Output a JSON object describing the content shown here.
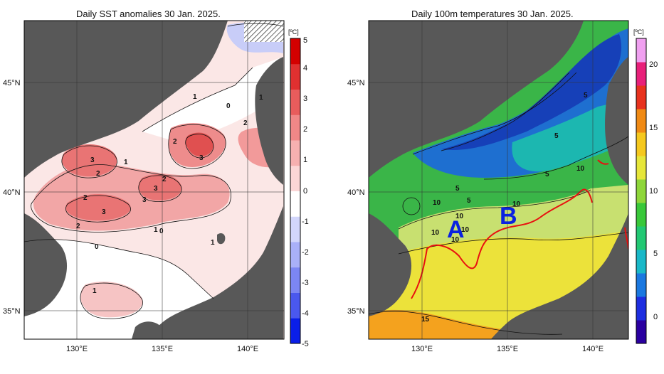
{
  "panels": [
    {
      "id": "sst",
      "title": "Daily SST anomalies 30 Jan. 2025.",
      "lat_labels": [
        "45°N",
        "40°N",
        "35°N"
      ],
      "lon_labels": [
        "130°E",
        "135°E",
        "140°E"
      ],
      "colorbar": {
        "unit": "[ºC]",
        "ticks": [
          "5",
          "4",
          "3",
          "2",
          "1",
          "0",
          "-1",
          "-2",
          "-3",
          "-4",
          "-5"
        ],
        "min": -5,
        "max": 5,
        "colors": [
          "#0a1ee8",
          "#4a58ee",
          "#7c86f3",
          "#a9b0f8",
          "#d2d6fb",
          "#ffffff",
          "#fbd6d6",
          "#f6b0b0",
          "#f08787",
          "#e85c5c",
          "#e03030",
          "#d40000"
        ]
      },
      "contour_labels": [
        "3",
        "2",
        "1",
        "0",
        "2",
        "3",
        "2",
        "3",
        "3",
        "2",
        "3",
        "2",
        "1",
        "1",
        "0",
        "1",
        "2",
        "1",
        "0",
        "1"
      ]
    },
    {
      "id": "t100",
      "title": "Daily 100m temperatures 30 Jan. 2025.",
      "lat_labels": [
        "45°N",
        "40°N",
        "35°N"
      ],
      "lon_labels": [
        "130°E",
        "135°E",
        "140°E"
      ],
      "colorbar": {
        "unit": "[ºC]",
        "ticks": [
          "20",
          "15",
          "10",
          "5",
          "0"
        ],
        "min": -2,
        "max": 22,
        "colors": [
          "#2a00a0",
          "#1e2ee0",
          "#1a78e0",
          "#19b8c8",
          "#22c873",
          "#39c83a",
          "#8ed63a",
          "#e6e63a",
          "#f5c81e",
          "#f08a14",
          "#e8321e",
          "#e8207a",
          "#f0a0f0"
        ]
      },
      "contour_labels": [
        "5",
        "5",
        "5",
        "5",
        "10",
        "5",
        "10",
        "10",
        "10",
        "10",
        "10",
        "10",
        "15"
      ],
      "region_labels": [
        "A",
        "B"
      ]
    }
  ]
}
